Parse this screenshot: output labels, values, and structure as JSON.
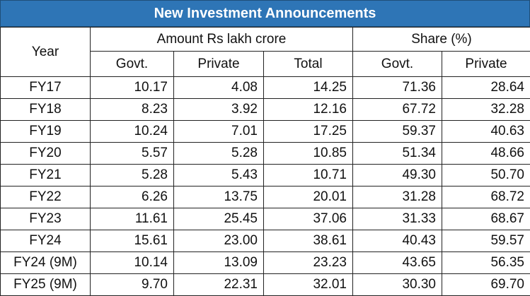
{
  "title": "New Investment Announcements",
  "headers": {
    "year": "Year",
    "amount_group": "Amount Rs lakh crore",
    "share_group": "Share (%)",
    "amount_cols": [
      "Govt.",
      "Private",
      "Total"
    ],
    "share_cols": [
      "Govt.",
      "Private"
    ]
  },
  "chart_data": {
    "type": "table",
    "title": "New Investment Announcements",
    "columns": [
      "Year",
      "Govt.",
      "Private",
      "Total",
      "Govt.",
      "Private"
    ],
    "column_groups": [
      {
        "name": "Amount Rs lakh crore",
        "columns": [
          "Govt.",
          "Private",
          "Total"
        ]
      },
      {
        "name": "Share (%)",
        "columns": [
          "Govt.",
          "Private"
        ]
      }
    ],
    "rows": [
      {
        "year": "FY17",
        "amount_govt": "10.17",
        "amount_private": "4.08",
        "amount_total": "14.25",
        "share_govt": "71.36",
        "share_private": "28.64"
      },
      {
        "year": "FY18",
        "amount_govt": "8.23",
        "amount_private": "3.92",
        "amount_total": "12.16",
        "share_govt": "67.72",
        "share_private": "32.28"
      },
      {
        "year": "FY19",
        "amount_govt": "10.24",
        "amount_private": "7.01",
        "amount_total": "17.25",
        "share_govt": "59.37",
        "share_private": "40.63"
      },
      {
        "year": "FY20",
        "amount_govt": "5.57",
        "amount_private": "5.28",
        "amount_total": "10.85",
        "share_govt": "51.34",
        "share_private": "48.66"
      },
      {
        "year": "FY21",
        "amount_govt": "5.28",
        "amount_private": "5.43",
        "amount_total": "10.71",
        "share_govt": "49.30",
        "share_private": "50.70"
      },
      {
        "year": "FY22",
        "amount_govt": "6.26",
        "amount_private": "13.75",
        "amount_total": "20.01",
        "share_govt": "31.28",
        "share_private": "68.72"
      },
      {
        "year": "FY23",
        "amount_govt": "11.61",
        "amount_private": "25.45",
        "amount_total": "37.06",
        "share_govt": "31.33",
        "share_private": "68.67"
      },
      {
        "year": "FY24",
        "amount_govt": "15.61",
        "amount_private": "23.00",
        "amount_total": "38.61",
        "share_govt": "40.43",
        "share_private": "59.57"
      },
      {
        "year": "FY24 (9M)",
        "amount_govt": "10.14",
        "amount_private": "13.09",
        "amount_total": "23.23",
        "share_govt": "43.65",
        "share_private": "56.35"
      },
      {
        "year": "FY25 (9M)",
        "amount_govt": "9.70",
        "amount_private": "22.31",
        "amount_total": "32.01",
        "share_govt": "30.30",
        "share_private": "69.70"
      }
    ]
  },
  "colors": {
    "title_background": "#2e75b6",
    "title_text": "#ffffff",
    "border": "#222222"
  }
}
